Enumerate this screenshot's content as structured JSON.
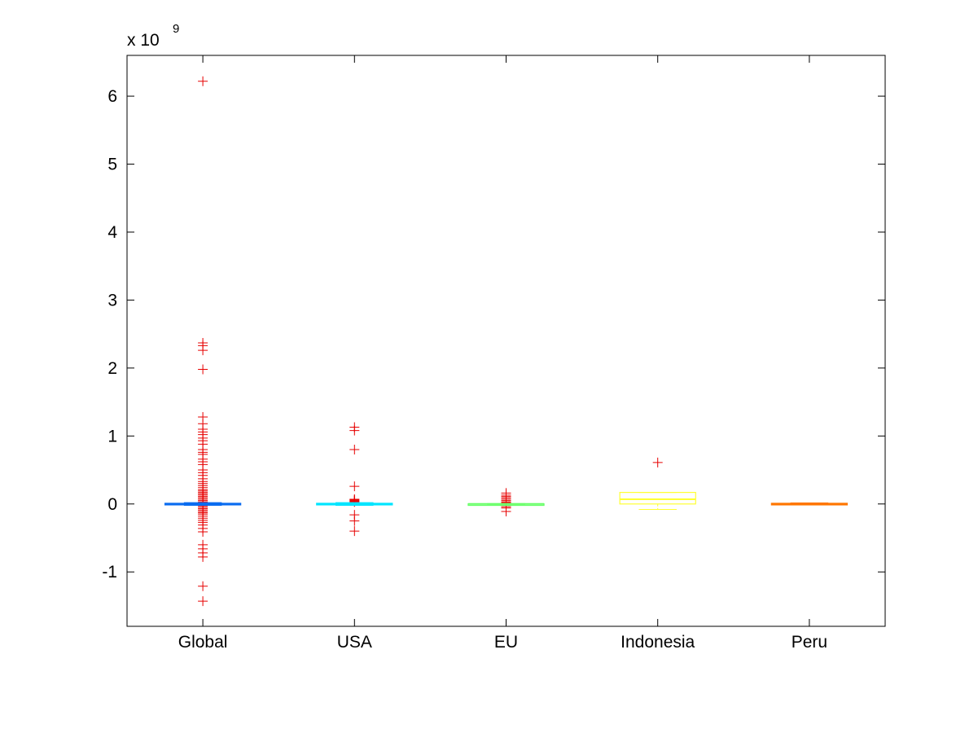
{
  "chart_data": {
    "type": "boxplot",
    "title": "",
    "xlabel": "",
    "ylabel": "",
    "y_scale_base": "x 10",
    "y_scale_exponent": "9",
    "ylim": [
      -1.8,
      6.6
    ],
    "yticks": [
      -1,
      0,
      1,
      2,
      3,
      4,
      5,
      6
    ],
    "ytick_labels": [
      "-1",
      "0",
      "1",
      "2",
      "3",
      "4",
      "5",
      "6"
    ],
    "grid": false,
    "outlier_color": "#e60000",
    "categories": [
      "Global",
      "USA",
      "EU",
      "Indonesia",
      "Peru"
    ],
    "boxes": [
      {
        "label": "Global",
        "color": "#0a6cf0",
        "q1": -0.01,
        "median": 0.0,
        "q3": 0.01,
        "whisker_low": -0.02,
        "whisker_high": 0.02,
        "outliers": [
          6.22,
          2.37,
          2.33,
          2.26,
          1.98,
          1.28,
          1.18,
          1.1,
          1.06,
          1.02,
          0.97,
          0.93,
          0.88,
          0.8,
          0.76,
          0.73,
          0.66,
          0.62,
          0.58,
          0.5,
          0.46,
          0.42,
          0.37,
          0.33,
          0.3,
          0.27,
          0.24,
          0.21,
          0.19,
          0.17,
          0.15,
          0.13,
          0.11,
          0.09,
          0.07,
          0.05,
          0.03,
          -0.03,
          -0.05,
          -0.07,
          -0.09,
          -0.11,
          -0.13,
          -0.15,
          -0.18,
          -0.21,
          -0.24,
          -0.27,
          -0.31,
          -0.36,
          -0.41,
          -0.6,
          -0.66,
          -0.72,
          -0.78,
          -1.21,
          -1.43
        ]
      },
      {
        "label": "USA",
        "color": "#00e5ff",
        "q1": -0.01,
        "median": 0.0,
        "q3": 0.01,
        "whisker_low": -0.02,
        "whisker_high": 0.02,
        "outliers": [
          1.13,
          1.08,
          0.8,
          0.26,
          0.07,
          0.06,
          0.05,
          0.04,
          0.03,
          -0.16,
          -0.25,
          -0.4
        ]
      },
      {
        "label": "EU",
        "color": "#66ff66",
        "q1": -0.003,
        "median": 0.0,
        "q3": 0.003,
        "whisker_low": -0.005,
        "whisker_high": 0.005,
        "outliers": [
          0.16,
          0.13,
          0.11,
          0.09,
          0.07,
          0.05,
          0.03,
          0.02,
          -0.02,
          -0.04,
          -0.06,
          -0.11
        ]
      },
      {
        "label": "Indonesia",
        "color": "#ffff33",
        "q1": 0.0,
        "median": 0.07,
        "q3": 0.17,
        "whisker_low": -0.08,
        "whisker_high": 0.17,
        "outliers": [
          0.61
        ]
      },
      {
        "label": "Peru",
        "color": "#ff7700",
        "q1": -0.01,
        "median": 0.0,
        "q3": 0.01,
        "whisker_low": -0.015,
        "whisker_high": 0.015,
        "outliers": []
      }
    ]
  }
}
